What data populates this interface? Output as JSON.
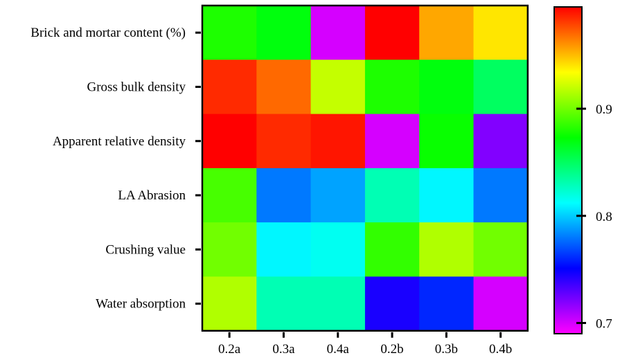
{
  "chart_data": {
    "type": "heatmap",
    "title": "",
    "xlabel": "",
    "ylabel": "",
    "x_categories": [
      "0.2a",
      "0.3a",
      "0.4a",
      "0.2b",
      "0.3b",
      "0.4b"
    ],
    "y_categories": [
      "Brick and mortar content (%)",
      "Gross bulk density",
      "Apparent relative density",
      "LA Abrasion",
      "Crushing value",
      "Water absorption"
    ],
    "values": [
      [
        0.88,
        0.87,
        0.7,
        0.995,
        0.955,
        0.94
      ],
      [
        0.985,
        0.97,
        0.92,
        0.88,
        0.87,
        0.85
      ],
      [
        0.995,
        0.985,
        0.99,
        0.7,
        0.875,
        0.72
      ],
      [
        0.89,
        0.78,
        0.79,
        0.83,
        0.81,
        0.78
      ],
      [
        0.9,
        0.81,
        0.815,
        0.885,
        0.915,
        0.9
      ],
      [
        0.915,
        0.83,
        0.83,
        0.745,
        0.76,
        0.7
      ]
    ],
    "colorbar": {
      "min": 0.69,
      "max": 0.995,
      "ticks": [
        0.9,
        0.8,
        0.7
      ],
      "tick_labels": [
        "0.9",
        "0.8",
        "0.7"
      ],
      "colormap": "hsv-rainbow (magenta-blue-cyan-green-yellow-red)",
      "placement": "right"
    },
    "grid": false,
    "legend": "colorbar-right"
  }
}
